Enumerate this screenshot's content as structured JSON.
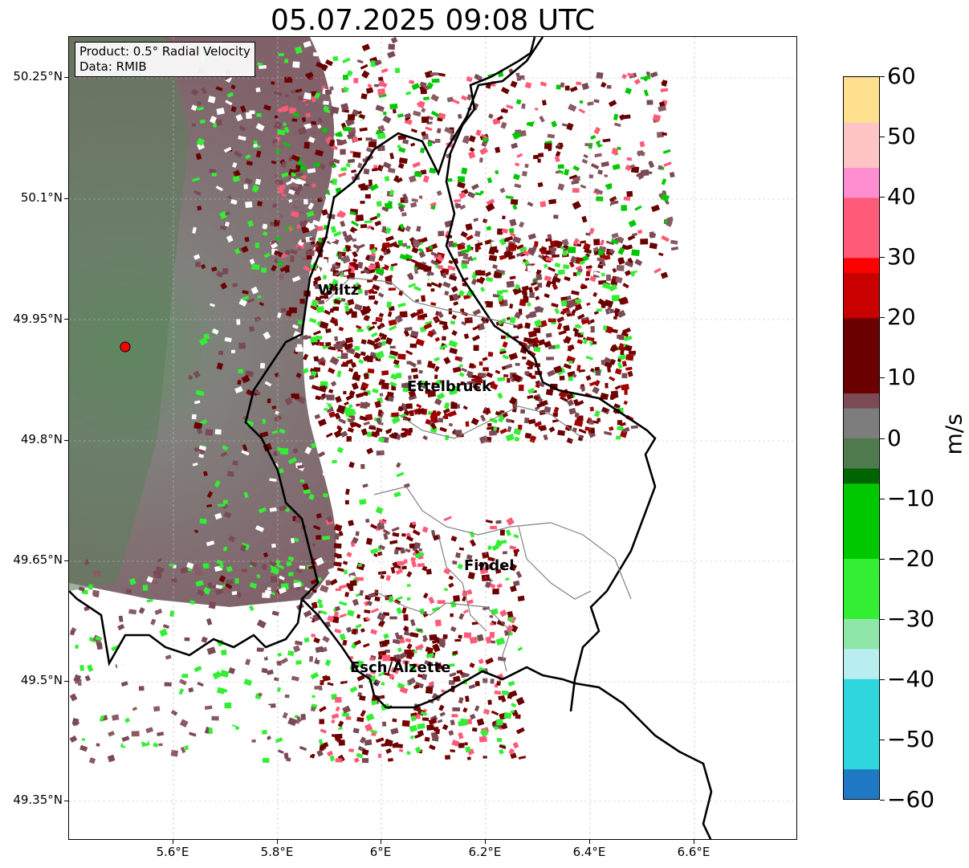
{
  "title": "05.07.2025 09:08 UTC",
  "infobox": {
    "product": "Product: 0.5° Radial Velocity",
    "source": "Data: RMIB"
  },
  "axes": {
    "lat_labels": [
      "50.25°N",
      "50.1°N",
      "49.95°N",
      "49.8°N",
      "49.65°N",
      "49.5°N",
      "49.35°N"
    ],
    "lon_labels": [
      "5.6°E",
      "5.8°E",
      "6°E",
      "6.2°E",
      "6.4°E",
      "6.6°E"
    ],
    "gridlines": true
  },
  "cities": [
    {
      "name": "Wiltz",
      "marker": false
    },
    {
      "name": "Ettelbruck",
      "marker": false
    },
    {
      "name": "Findel",
      "marker": true
    },
    {
      "name": "Esch/Alzette",
      "marker": true
    }
  ],
  "radar_site_color": "#ff0000",
  "colorbar": {
    "unit": "m/s",
    "min": -60,
    "max": 60,
    "ticks": [
      "60",
      "50",
      "40",
      "30",
      "20",
      "10",
      "0",
      "−10",
      "−20",
      "−30",
      "−40",
      "−50",
      "−60"
    ],
    "stops": [
      {
        "v": -60,
        "c": "#1f78c4"
      },
      {
        "v": -55,
        "c": "#2fd6de"
      },
      {
        "v": -40,
        "c": "#b8eef0"
      },
      {
        "v": -36,
        "c": "#8ee6a8"
      },
      {
        "v": -30,
        "c": "#33ee33"
      },
      {
        "v": -20,
        "c": "#00c800"
      },
      {
        "v": -8,
        "c": "#006400"
      },
      {
        "v": -6,
        "c": "#4e7a4e"
      },
      {
        "v": 0,
        "c": "#7d7d7d"
      },
      {
        "v": 6,
        "c": "#7a4a55"
      },
      {
        "v": 8,
        "c": "#6a0000"
      },
      {
        "v": 20,
        "c": "#c80000"
      },
      {
        "v": 28,
        "c": "#ff0000"
      },
      {
        "v": 30,
        "c": "#ff5a78"
      },
      {
        "v": 40,
        "c": "#ff8ed0"
      },
      {
        "v": 46,
        "c": "#ffc4c4"
      },
      {
        "v": 52,
        "c": "#ffe08e"
      },
      {
        "v": 60,
        "c": "#ff9a50"
      }
    ]
  }
}
